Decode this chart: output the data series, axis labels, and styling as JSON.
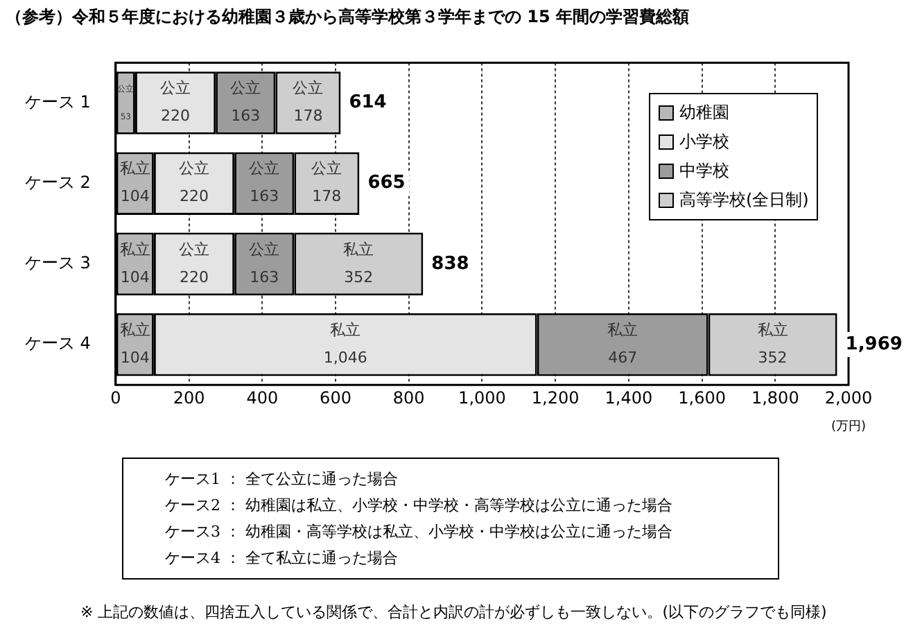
{
  "chart_data": {
    "type": "bar",
    "orientation": "horizontal",
    "stacked": true,
    "title": "（参考）令和５年度における幼稚園３歳から高等学校第３学年までの 15 年間の学習費総額",
    "xlabel": "(万円)",
    "categories": [
      "ケース 1",
      "ケース 2",
      "ケース 3",
      "ケース 4"
    ],
    "series": [
      {
        "name": "幼稚園",
        "color": "#b8b8b8",
        "values": [
          53,
          104,
          104,
          104
        ],
        "value_labels": [
          "公立\n53",
          "私立\n104",
          "私立\n104",
          "私立\n104"
        ]
      },
      {
        "name": "小学校",
        "color": "#e4e4e4",
        "values": [
          220,
          220,
          220,
          1046
        ],
        "value_labels": [
          "公立\n220",
          "公立\n220",
          "公立\n220",
          "私立\n1,046"
        ]
      },
      {
        "name": "中学校",
        "color": "#9c9c9c",
        "values": [
          163,
          163,
          163,
          467
        ],
        "value_labels": [
          "公立\n163",
          "公立\n163",
          "公立\n163",
          "私立\n467"
        ]
      },
      {
        "name": "高等学校(全日制)",
        "color": "#cecece",
        "values": [
          178,
          178,
          352,
          352
        ],
        "value_labels": [
          "公立\n178",
          "公立\n178",
          "私立\n352",
          "私立\n352"
        ]
      }
    ],
    "totals": [
      "614",
      "665",
      "838",
      "1,969"
    ],
    "xlim": [
      0,
      2000
    ],
    "xticks": [
      0,
      200,
      400,
      600,
      800,
      {
        "value": 1000,
        "label": "1,000"
      },
      {
        "value": 1200,
        "label": "1,200"
      },
      {
        "value": 1400,
        "label": "1,400"
      },
      {
        "value": 1600,
        "label": "1,600"
      },
      {
        "value": 1800,
        "label": "1,800"
      },
      {
        "value": 2000,
        "label": "2,000"
      }
    ],
    "grid": "x",
    "legend": "top right",
    "annotations": [
      "ケース1 ： 全て公立に通った場合",
      "ケース2 ： 幼稚園は私立、小学校・中学校・高等学校は公立に通った場合",
      "ケース3 ： 幼稚園・高等学校は私立、小学校・中学校は公立に通った場合",
      "ケース4 ： 全て私立に通った場合",
      "※ 上記の数値は、四捨五入している関係で、合計と内訳の計が必ずしも一致しない。(以下のグラフでも同様)"
    ]
  }
}
